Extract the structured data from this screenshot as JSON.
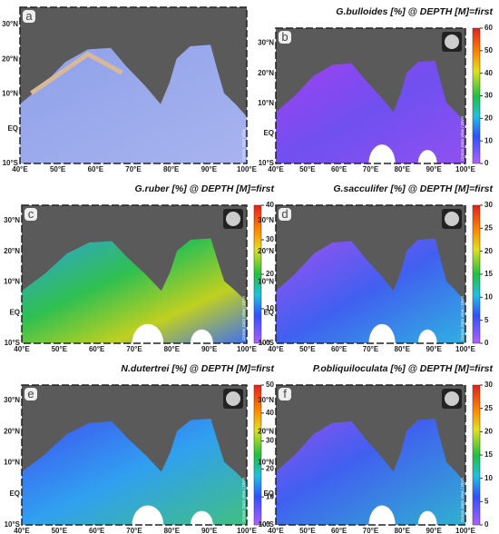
{
  "lat_labels": [
    "30°N",
    "20°N",
    "10°N",
    "EQ",
    "10°S"
  ],
  "lon_labels": [
    "40°E",
    "50°E",
    "60°E",
    "70°E",
    "80°E",
    "90°E",
    "100°E"
  ],
  "panels": [
    {
      "label": "a",
      "watermark": "Ocean Data View"
    },
    {
      "label": "b",
      "title": "G.bulloides [%] @ DEPTH [M]=first",
      "colorbar_ticks": [
        0,
        10,
        20,
        30,
        40,
        50,
        60
      ],
      "watermark": "Ocean Data View / DIVA"
    },
    {
      "label": "c",
      "title": "G.ruber [%] @ DEPTH [M]=first",
      "colorbar_ticks": [
        0,
        10,
        20,
        30,
        40
      ],
      "watermark": "Ocean Data View / DIVA"
    },
    {
      "label": "d",
      "title": "G.sacculifer [%] @ DEPTH [M]=first",
      "colorbar_ticks": [
        0,
        5,
        10,
        15,
        20,
        25,
        30
      ],
      "watermark": "Ocean Data View / DIVA"
    },
    {
      "label": "e",
      "title": "N.dutertrei [%] @ DEPTH [M]=first",
      "colorbar_ticks": [
        0,
        10,
        20,
        30,
        40,
        50
      ],
      "watermark": "Ocean Data View / DIVA"
    },
    {
      "label": "f",
      "title": "P.obliquiloculata [%] @ DEPTH [M]=first",
      "colorbar_ticks": [
        0,
        5,
        10,
        15,
        20,
        25,
        30
      ],
      "watermark": "Ocean Data View / DIVA"
    }
  ]
}
